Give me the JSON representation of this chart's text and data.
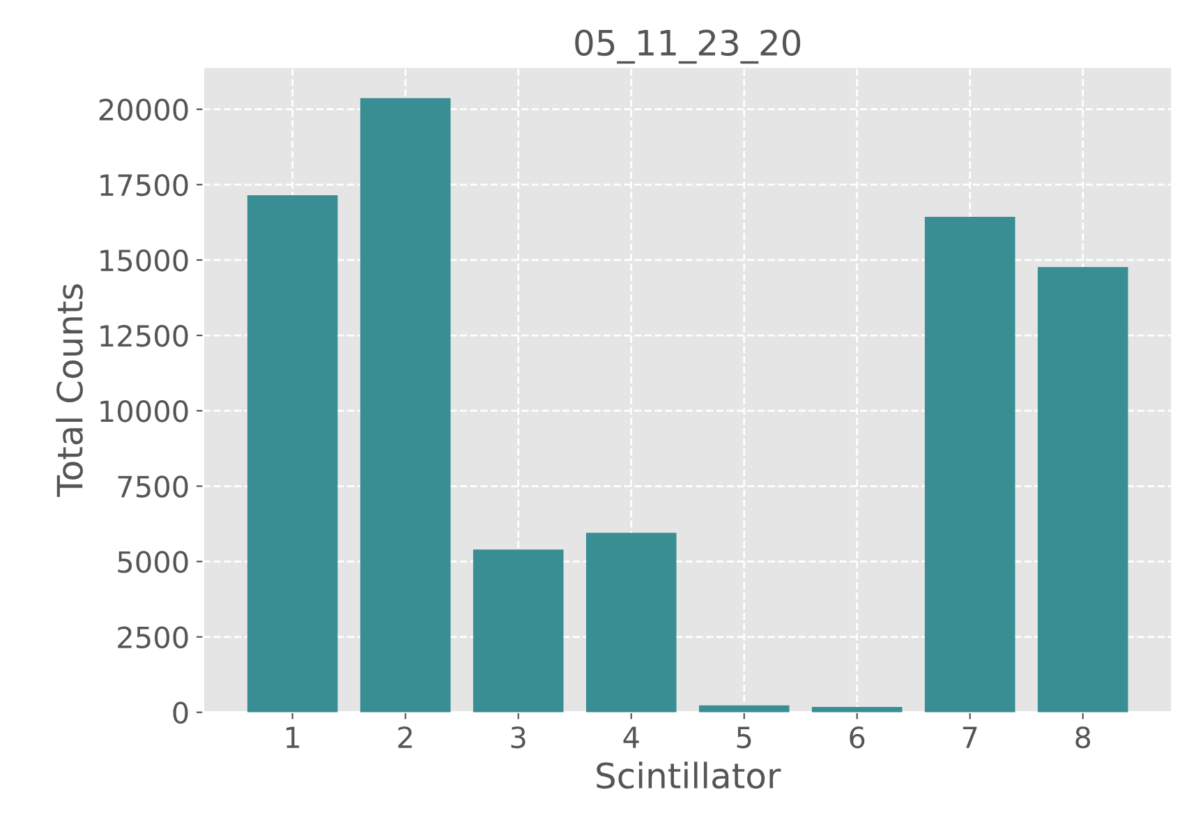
{
  "chart_data": {
    "type": "bar",
    "title": "05_11_23_20",
    "xlabel": "Scintillator",
    "ylabel": "Total Counts",
    "categories": [
      "1",
      "2",
      "3",
      "4",
      "5",
      "6",
      "7",
      "8"
    ],
    "values": [
      17150,
      20370,
      5400,
      5950,
      230,
      180,
      16430,
      14770
    ],
    "color": "#388e92",
    "ylim": [
      0,
      21400
    ],
    "yticks": [
      0,
      2500,
      5000,
      7500,
      10000,
      12500,
      15000,
      17500,
      20000
    ],
    "grid": true
  }
}
